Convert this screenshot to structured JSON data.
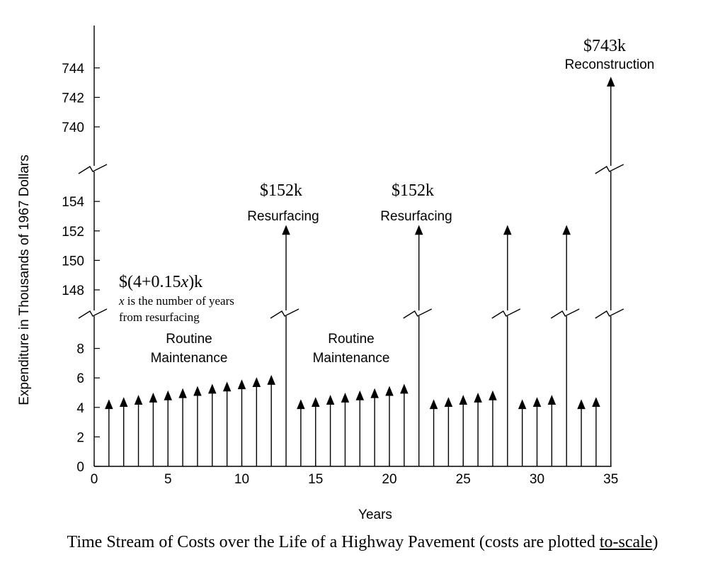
{
  "chart_data": {
    "type": "bar",
    "x": [
      1,
      2,
      3,
      4,
      5,
      6,
      7,
      8,
      9,
      10,
      11,
      12,
      13,
      14,
      15,
      16,
      17,
      18,
      19,
      20,
      21,
      22,
      23,
      24,
      25,
      26,
      27,
      28,
      29,
      30,
      31,
      32,
      33,
      34,
      35
    ],
    "values": [
      4.15,
      4.3,
      4.45,
      4.6,
      4.75,
      4.9,
      5.05,
      5.2,
      5.35,
      5.5,
      5.65,
      5.8,
      152,
      4.15,
      4.3,
      4.45,
      4.6,
      4.75,
      4.9,
      5.05,
      5.2,
      152,
      4.15,
      4.3,
      4.45,
      4.6,
      4.75,
      152,
      4.15,
      4.3,
      4.45,
      152,
      4.15,
      4.3,
      743
    ],
    "xlabel": "Years",
    "ylabel": "Expenditure in Thousands of 1967 Dollars",
    "xlim": [
      0,
      35
    ],
    "x_ticks": [
      "0",
      "5",
      "10",
      "15",
      "20",
      "25",
      "30",
      "35"
    ],
    "y_ticks_low": [
      "0",
      "2",
      "4",
      "6",
      "8"
    ],
    "y_ticks_mid": [
      "148",
      "150",
      "152",
      "154"
    ],
    "y_ticks_high": [
      "740",
      "742",
      "744"
    ],
    "broken_axis": true,
    "grid": false,
    "annotations": {
      "formula": "$(4+0.15x)k",
      "formula_note_1": "x is the number of years",
      "formula_note_2": "from resurfacing",
      "routine_1a": "Routine",
      "routine_1b": "Maintenance",
      "routine_2a": "Routine",
      "routine_2b": "Maintenance",
      "resurf_1_cost": "$152k",
      "resurf_1_label": "Resurfacing",
      "resurf_2_cost": "$152k",
      "resurf_2_label": "Resurfacing",
      "recon_cost": "$743k",
      "recon_label": "Reconstruction"
    }
  },
  "caption": {
    "before": "Time Stream of Costs over the Life of a Highway Pavement (costs are plotted ",
    "underlined": "to-scale",
    "after": ")"
  }
}
